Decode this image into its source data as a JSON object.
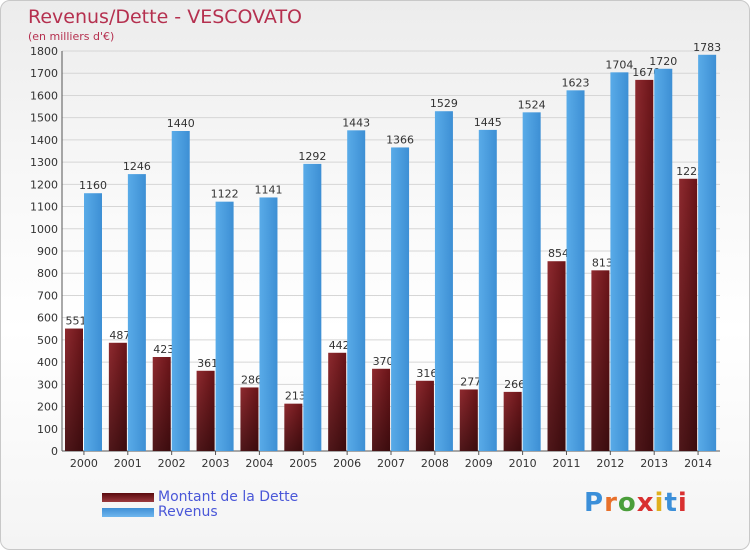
{
  "chart_data": {
    "type": "bar",
    "title": "Revenus/Dette - VESCOVATO",
    "subtitle": "(en milliers d'€)",
    "categories": [
      "2000",
      "2001",
      "2002",
      "2003",
      "2004",
      "2005",
      "2006",
      "2007",
      "2008",
      "2009",
      "2010",
      "2011",
      "2012",
      "2013",
      "2014"
    ],
    "series": [
      {
        "name": "Montant de la Dette",
        "color": "#7a1e22",
        "values": [
          551,
          487,
          423,
          361,
          286,
          213,
          442,
          370,
          316,
          277,
          266,
          854,
          813,
          1670,
          1225
        ],
        "labels": [
          "551",
          "487",
          "423",
          "361",
          "286",
          "213",
          "442",
          "370",
          "316",
          "277",
          "266",
          "854",
          "813",
          "1670",
          "1225"
        ]
      },
      {
        "name": "Revenus",
        "color": "#4a9fe0",
        "values": [
          1160,
          1246,
          1440,
          1122,
          1141,
          1292,
          1443,
          1366,
          1529,
          1445,
          1524,
          1623,
          1704,
          1720,
          1783
        ],
        "labels": [
          "1160",
          "1246",
          "1440",
          "1122",
          "1141",
          "1292",
          "1443",
          "1366",
          "1529",
          "1445",
          "1524",
          "1623",
          "1704",
          "1720",
          "1783"
        ]
      }
    ],
    "ylim": [
      0,
      1800
    ],
    "ytick_step": 100,
    "grid": true,
    "legend": "bottom-left"
  },
  "logo": {
    "text": "Proxiti"
  }
}
